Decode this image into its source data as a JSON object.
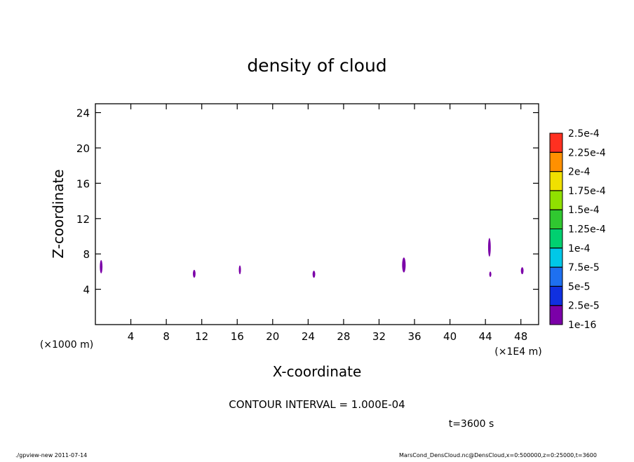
{
  "chart_data": {
    "type": "contour",
    "title": "density of cloud",
    "xlabel": "X-coordinate",
    "ylabel": "Z-coordinate",
    "xunit": "(×1E4 m)",
    "yunit": "(×1000 m)",
    "xlim": [
      0,
      50
    ],
    "ylim": [
      0,
      25
    ],
    "xticks": [
      4,
      8,
      12,
      16,
      20,
      24,
      28,
      32,
      36,
      40,
      44,
      48
    ],
    "yticks": [
      4,
      8,
      12,
      16,
      20,
      24
    ],
    "patches": [
      {
        "x": [
          0.5,
          0.8
        ],
        "z": [
          5.8,
          7.3
        ]
      },
      {
        "x": [
          11.0,
          11.3
        ],
        "z": [
          5.3,
          6.2
        ]
      },
      {
        "x": [
          16.2,
          16.4
        ],
        "z": [
          5.7,
          6.7
        ]
      },
      {
        "x": [
          24.5,
          24.8
        ],
        "z": [
          5.3,
          6.1
        ]
      },
      {
        "x": [
          34.6,
          35.0
        ],
        "z": [
          5.9,
          7.6
        ]
      },
      {
        "x": [
          44.3,
          44.6
        ],
        "z": [
          7.7,
          9.8
        ]
      },
      {
        "x": [
          44.5,
          44.6
        ],
        "z": [
          5.4,
          6.0
        ]
      },
      {
        "x": [
          48.0,
          48.3
        ],
        "z": [
          5.7,
          6.5
        ]
      }
    ],
    "patch_color": "#7b00a8",
    "levels": [
      {
        "value": 1e-16,
        "label": "1e-16"
      },
      {
        "value": 2.5e-05,
        "label": "2.5e-5"
      },
      {
        "value": 5e-05,
        "label": "5e-5"
      },
      {
        "value": 7.5e-05,
        "label": "7.5e-5"
      },
      {
        "value": 0.0001,
        "label": "1e-4"
      },
      {
        "value": 0.000125,
        "label": "1.25e-4"
      },
      {
        "value": 0.00015,
        "label": "1.5e-4"
      },
      {
        "value": 0.000175,
        "label": "1.75e-4"
      },
      {
        "value": 0.0002,
        "label": "2e-4"
      },
      {
        "value": 0.000225,
        "label": "2.25e-4"
      },
      {
        "value": 0.00025,
        "label": "2.5e-4"
      }
    ],
    "level_colors": [
      "#7b00a8",
      "#1030e0",
      "#1e70f0",
      "#00c8e8",
      "#00d070",
      "#30c830",
      "#90e000",
      "#f0e000",
      "#ff9000",
      "#ff3020"
    ],
    "annotation": "CONTOUR INTERVAL = 1.000E-04",
    "time": "t=3600 s",
    "footer_left": "./gpview-new   2011-07-14",
    "footer_right": "MarsCond_DensCloud.nc@DensCloud,x=0:500000,z=0:25000,t=3600"
  }
}
